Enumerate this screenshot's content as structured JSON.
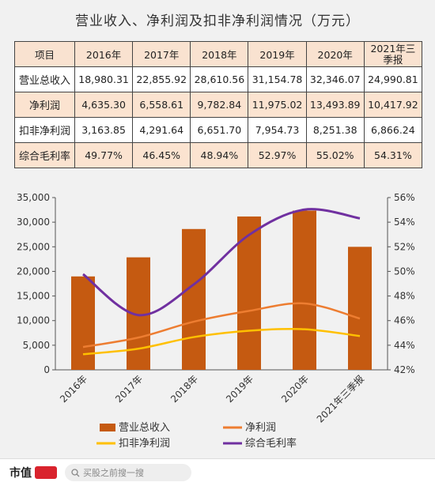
{
  "title": "营业收入、净利润及扣非净利润情况（万元）",
  "table": {
    "header": [
      "项目",
      "2016年",
      "2017年",
      "2018年",
      "2019年",
      "2020年",
      "2021年三季报"
    ],
    "rows": [
      {
        "label": "营业总收入",
        "values": [
          "18,980.31",
          "22,855.92",
          "28,610.56",
          "31,154.78",
          "32,346.07",
          "24,990.81"
        ]
      },
      {
        "label": "净利润",
        "values": [
          "4,635.30",
          "6,558.61",
          "9,782.84",
          "11,975.02",
          "13,493.89",
          "10,417.92"
        ]
      },
      {
        "label": "扣非净利润",
        "values": [
          "3,163.85",
          "4,291.64",
          "6,651.70",
          "7,954.73",
          "8,251.38",
          "6,866.24"
        ]
      },
      {
        "label": "综合毛利率",
        "values": [
          "49.77%",
          "46.45%",
          "48.94%",
          "52.97%",
          "55.02%",
          "54.31%"
        ]
      }
    ]
  },
  "chart_data": {
    "type": "bar",
    "categories": [
      "2016年",
      "2017年",
      "2018年",
      "2019年",
      "2020年",
      "2021年三季报"
    ],
    "series": [
      {
        "name": "营业总收入",
        "type": "bar",
        "axis": "left",
        "color": "#c55a11",
        "values": [
          18980.31,
          22855.92,
          28610.56,
          31154.78,
          32346.07,
          24990.81
        ]
      },
      {
        "name": "净利润",
        "type": "line",
        "axis": "left",
        "color": "#ed7d31",
        "values": [
          4635.3,
          6558.61,
          9782.84,
          11975.02,
          13493.89,
          10417.92
        ]
      },
      {
        "name": "扣非净利润",
        "type": "line",
        "axis": "left",
        "color": "#ffc000",
        "values": [
          3163.85,
          4291.64,
          6651.7,
          7954.73,
          8251.38,
          6866.24
        ]
      },
      {
        "name": "综合毛利率",
        "type": "line",
        "axis": "right",
        "color": "#7030a0",
        "values": [
          49.77,
          46.45,
          48.94,
          52.97,
          55.02,
          54.31
        ]
      }
    ],
    "ylim_left": [
      0,
      35000
    ],
    "yticks_left": [
      "0",
      "5,000",
      "10,000",
      "15,000",
      "20,000",
      "25,000",
      "30,000",
      "35,000"
    ],
    "ylim_right": [
      42,
      56
    ],
    "yticks_right": [
      "42%",
      "44%",
      "46%",
      "48%",
      "50%",
      "52%",
      "54%",
      "56%"
    ],
    "grid": false,
    "legend_position": "bottom"
  },
  "footer": {
    "brand": "市值",
    "search_placeholder": "买股之前搜一搜"
  }
}
